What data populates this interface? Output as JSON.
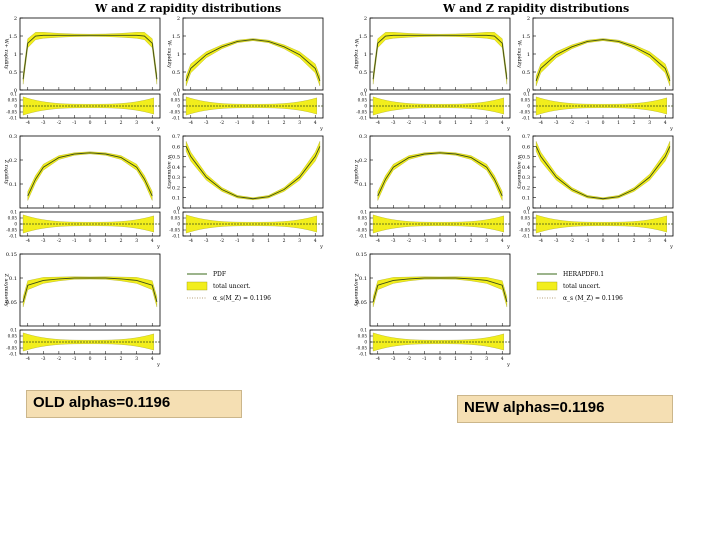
{
  "figures": [
    {
      "id": "old",
      "title": "W and Z rapidity distributions",
      "legend": [
        {
          "label": "PDF",
          "style": "line",
          "color": "#3a6a1a"
        },
        {
          "label": "total uncert.",
          "style": "band",
          "color": "#f2ee1c"
        },
        {
          "label": "α_s(M_Z) = 0.1196",
          "style": "dotted",
          "color": "#b7a27a"
        }
      ]
    },
    {
      "id": "new",
      "title": "W and Z rapidity distributions",
      "legend": [
        {
          "label": "HERAPDF0.1",
          "style": "line",
          "color": "#3a6a1a"
        },
        {
          "label": "total uncert.",
          "style": "band",
          "color": "#f2ee1c"
        },
        {
          "label": "α_s (M_Z) = 0.1196",
          "style": "dotted",
          "color": "#b7a27a"
        }
      ]
    }
  ],
  "captions": {
    "old": "OLD alphas=0.1196",
    "new": "NEW alphas=0.1196"
  },
  "chart_data": [
    {
      "type": "line",
      "panel": "W+ rapidity",
      "ylabel": "W+ rapidity",
      "xlabel": "y",
      "xlim": [
        -4.5,
        4.5
      ],
      "ylim": [
        0,
        2
      ],
      "yticks": [
        "0",
        "0.5",
        "1",
        "1.5",
        "2"
      ],
      "xticks": [
        "-4",
        "-3",
        "-2",
        "-1",
        "0",
        "1",
        "2",
        "3",
        "4"
      ],
      "ratio_yticks": [
        "-0.1",
        "-0.05",
        "0",
        "0.05",
        "0.1"
      ],
      "series": [
        {
          "x": [
            -4.3,
            -4.0,
            -3.5,
            -3.0,
            -2.0,
            -1.0,
            0,
            1.0,
            2.0,
            3.0,
            3.5,
            4.0,
            4.3
          ],
          "y": [
            0.3,
            1.3,
            1.5,
            1.52,
            1.52,
            1.52,
            1.52,
            1.52,
            1.52,
            1.52,
            1.5,
            1.3,
            0.3
          ]
        }
      ]
    },
    {
      "type": "line",
      "panel": "W- rapidity",
      "ylabel": "W- rapidity",
      "xlabel": "y",
      "xlim": [
        -4.5,
        4.5
      ],
      "ylim": [
        0,
        2
      ],
      "yticks": [
        "0",
        "0.5",
        "1",
        "1.5",
        "2"
      ],
      "xticks": [
        "-4",
        "-3",
        "-2",
        "-1",
        "0",
        "1",
        "2",
        "3",
        "4"
      ],
      "ratio_yticks": [
        "-0.1",
        "-0.05",
        "0",
        "0.05",
        "0.1"
      ],
      "series": [
        {
          "x": [
            -4.3,
            -4.0,
            -3.0,
            -2.0,
            -1.0,
            0,
            1.0,
            2.0,
            3.0,
            4.0,
            4.3
          ],
          "y": [
            0.25,
            0.6,
            0.98,
            1.2,
            1.35,
            1.4,
            1.35,
            1.2,
            0.98,
            0.6,
            0.25
          ]
        }
      ]
    },
    {
      "type": "line",
      "panel": "Z rapidity",
      "ylabel": "Z rapidity",
      "xlabel": "y",
      "xlim": [
        -4.5,
        4.5
      ],
      "ylim": [
        0,
        0.3
      ],
      "yticks": [
        "0.1",
        "0.2",
        "0.3"
      ],
      "xticks": [
        "-4",
        "-3",
        "-2",
        "-1",
        "0",
        "1",
        "2",
        "3",
        "4"
      ],
      "ratio_yticks": [
        "-0.1",
        "-0.05",
        "0",
        "0.05",
        "0.1"
      ],
      "series": [
        {
          "x": [
            -4.0,
            -3.5,
            -3.0,
            -2.0,
            -1.0,
            0,
            1.0,
            2.0,
            3.0,
            3.5,
            4.0
          ],
          "y": [
            0.05,
            0.12,
            0.17,
            0.21,
            0.225,
            0.23,
            0.225,
            0.21,
            0.17,
            0.12,
            0.05
          ]
        }
      ]
    },
    {
      "type": "line",
      "panel": "W asymmetry",
      "ylabel": "W asymmetry",
      "xlabel": "y",
      "xlim": [
        -4.5,
        4.5
      ],
      "ylim": [
        0,
        0.7
      ],
      "yticks": [
        "0",
        "0.1",
        "0.2",
        "0.3",
        "0.4",
        "0.5",
        "0.6",
        "0.7"
      ],
      "xticks": [
        "-4",
        "-3",
        "-2",
        "-1",
        "0",
        "1",
        "2",
        "3",
        "4"
      ],
      "ratio_yticks": [
        "-0.1",
        "-0.05",
        "0",
        "0.05",
        "0.1"
      ],
      "series": [
        {
          "x": [
            -4.3,
            -4.0,
            -3.0,
            -2.0,
            -1.0,
            0,
            1.0,
            2.0,
            3.0,
            4.0,
            4.3
          ],
          "y": [
            0.6,
            0.5,
            0.3,
            0.18,
            0.11,
            0.09,
            0.11,
            0.18,
            0.3,
            0.5,
            0.6
          ]
        }
      ]
    },
    {
      "type": "line",
      "panel": "Z asymmetry",
      "ylabel": "Z asymmetry",
      "xlabel": "y",
      "xlim": [
        -4.5,
        4.5
      ],
      "ylim": [
        0,
        0.15
      ],
      "yticks": [
        "0.05",
        "0.1",
        "0.15"
      ],
      "xticks": [
        "-4",
        "-3",
        "-2",
        "-1",
        "0",
        "1",
        "2",
        "3",
        "4"
      ],
      "ratio_yticks": [
        "-0.1",
        "-0.05",
        "0",
        "0.05",
        "0.1"
      ],
      "series": [
        {
          "x": [
            -4.3,
            -4.0,
            -3.0,
            -2.0,
            -1.0,
            0,
            1.0,
            2.0,
            3.0,
            4.0,
            4.3
          ],
          "y": [
            0.05,
            0.085,
            0.095,
            0.098,
            0.1,
            0.1,
            0.1,
            0.098,
            0.095,
            0.085,
            0.05
          ]
        }
      ]
    }
  ]
}
